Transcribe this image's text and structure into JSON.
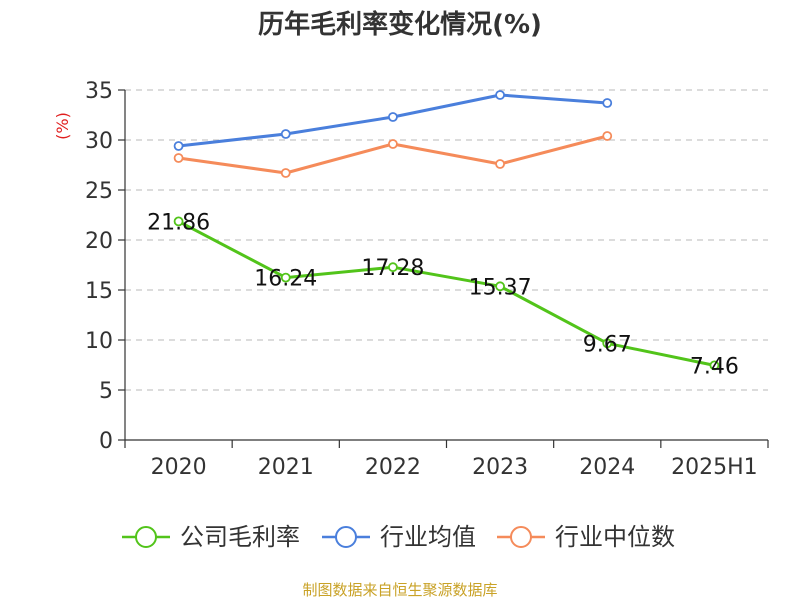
{
  "chart_data": {
    "type": "line",
    "title": "历年毛利率变化情况(%)",
    "ylabel": "(%)",
    "xlabel": "",
    "categories": [
      "2020",
      "2021",
      "2022",
      "2023",
      "2024",
      "2025H1"
    ],
    "ylim": [
      0,
      35
    ],
    "yticks": [
      0,
      5,
      10,
      15,
      20,
      25,
      30,
      35
    ],
    "grid": true,
    "legend_position": "bottom",
    "series": [
      {
        "name": "公司毛利率",
        "color": "#52c41a",
        "values": [
          21.86,
          16.24,
          17.28,
          15.37,
          9.67,
          7.46
        ],
        "labels": [
          "21.86",
          "16.24",
          "17.28",
          "15.37",
          "9.67",
          "7.46"
        ]
      },
      {
        "name": "行业均值",
        "color": "#4a7fdc",
        "values": [
          29.4,
          30.6,
          32.3,
          34.5,
          33.7,
          null
        ]
      },
      {
        "name": "行业中位数",
        "color": "#f58b5a",
        "values": [
          28.2,
          26.7,
          29.6,
          27.6,
          30.4,
          null
        ]
      }
    ]
  },
  "source_text": "制图数据来自恒生聚源数据库"
}
